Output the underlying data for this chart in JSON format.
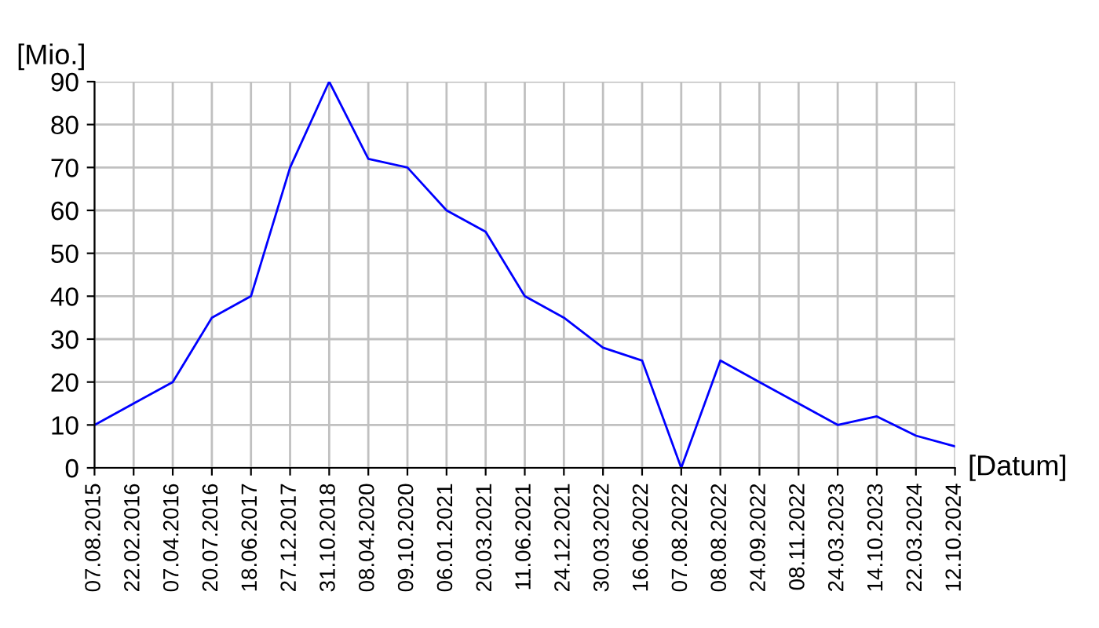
{
  "chart_data": {
    "type": "line",
    "ylabel": "[Mio.]",
    "xlabel": "[Datum]",
    "categories": [
      "07.08.2015",
      "22.02.2016",
      "07.04.2016",
      "20.07.2016",
      "18.06.2017",
      "27.12.2017",
      "31.10.2018",
      "08.04.2020",
      "09.10.2020",
      "06.01.2021",
      "20.03.2021",
      "11.06.2021",
      "24.12.2021",
      "30.03.2022",
      "16.06.2022",
      "07.08.2022",
      "08.08.2022",
      "24.09.2022",
      "08.11.2022",
      "24.03.2023",
      "14.10.2023",
      "22.03.2024",
      "12.10.2024"
    ],
    "series": [
      {
        "color": "#0000ff",
        "values": [
          10,
          15,
          20,
          35,
          40,
          70,
          90,
          72,
          70,
          60,
          55,
          40,
          35,
          28,
          25,
          0,
          25,
          20,
          15,
          10,
          12,
          7.5,
          5
        ]
      }
    ],
    "ylim": [
      0,
      90
    ],
    "yticks": [
      0,
      10,
      20,
      30,
      40,
      50,
      60,
      70,
      80,
      90
    ],
    "grid": true,
    "marker": "none",
    "line_style": "solid"
  }
}
